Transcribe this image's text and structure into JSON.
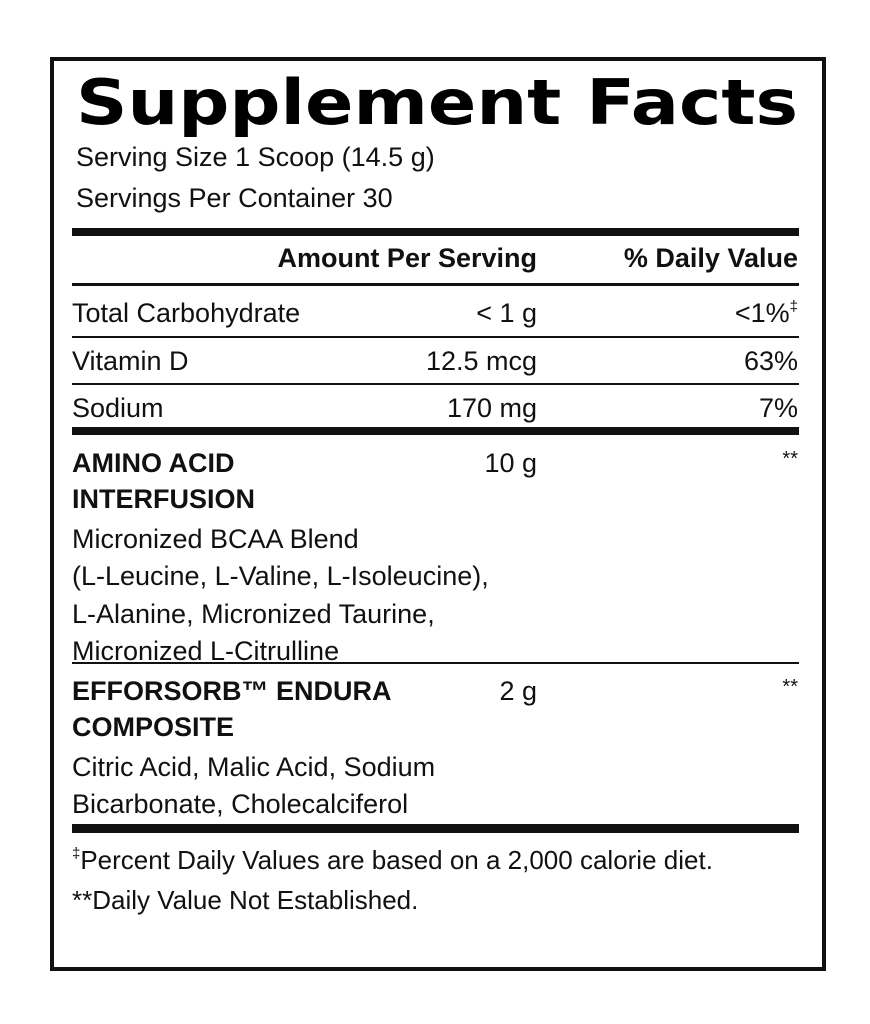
{
  "label": {
    "title": "Supplement Facts",
    "serving_size": "Serving Size 1 Scoop (14.5 g)",
    "servings_per_container": "Servings Per Container 30",
    "header": {
      "amount": "Amount Per Serving",
      "dv": "% Daily Value"
    },
    "nutrients": [
      {
        "name": "Total Carbohydrate",
        "amount": "< 1 g",
        "dv": "<1%",
        "dv_note": "‡"
      },
      {
        "name": "Vitamin D",
        "amount": "12.5 mcg",
        "dv": "63%"
      },
      {
        "name": "Sodium",
        "amount": "170 mg",
        "dv": "7%"
      }
    ],
    "blends": [
      {
        "name_lines": [
          "AMINO ACID",
          "INTERFUSION"
        ],
        "amount": "10 g",
        "dv": "**",
        "ingredients": [
          "Micronized BCAA Blend",
          "(L-Leucine, L-Valine, L-Isoleucine),",
          "L-Alanine, Micronized Taurine,",
          "Micronized L-Citrulline"
        ]
      },
      {
        "name_lines": [
          "EFFORSORB™ ENDURA",
          "COMPOSITE"
        ],
        "amount": "2 g",
        "dv": "**",
        "ingredients": [
          "Citric Acid, Malic Acid, Sodium",
          "Bicarbonate, Cholecalciferol"
        ]
      }
    ],
    "footnotes": [
      {
        "symbol": "‡",
        "text": "Percent Daily Values are based on a 2,000 calorie diet."
      },
      {
        "text": "**Daily Value Not Established."
      }
    ]
  }
}
